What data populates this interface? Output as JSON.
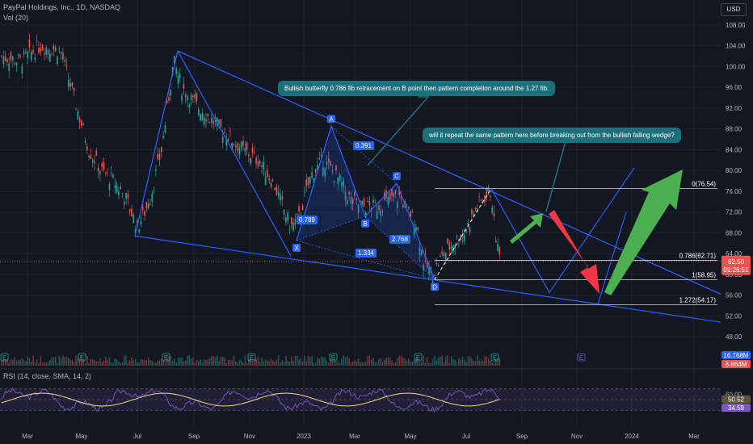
{
  "header": {
    "symbol_line": "PayPal Holdings, Inc., 1D, NASDAQ",
    "vol_label": "Vol (20)",
    "currency": "USD"
  },
  "notes": {
    "note1": "Bullish butterfly 0.786 fib retracement on B point then pattern completion around the 1.27 fib.",
    "note2": "will it repeat the same pattern here before breaking out from the bullish falling wedge?"
  },
  "colors": {
    "background": "#131722",
    "up": "#26a69a",
    "down": "#ef5350",
    "pattern": "#2962ff",
    "callout": "#1d6f7a",
    "green_arrow": "#4caf50",
    "red_arrow": "#f23645",
    "rsi": "#7e57c2",
    "rsi_ma": "#f5d78e"
  },
  "chart_data": {
    "type": "candlestick",
    "price_axis": {
      "min": 46,
      "max": 110,
      "ticks": [
        "108.00",
        "104.00",
        "100.00",
        "96.00",
        "92.00",
        "88.00",
        "84.00",
        "80.00",
        "76.00",
        "72.00",
        "68.00",
        "64.00",
        "60.00",
        "56.00",
        "52.00",
        "48.00"
      ]
    },
    "x_axis": {
      "ticks": [
        "Mar",
        "May",
        "Jul",
        "Sep",
        "Nov",
        "2023",
        "Mar",
        "May",
        "Jul",
        "Sep",
        "Nov",
        "2024",
        "Mar"
      ]
    },
    "last_price": "62.50",
    "countdown": "01:26:51",
    "volume_labels": [
      "16.768M",
      "8.664M"
    ],
    "pattern_points": [
      {
        "label": "X",
        "price": 66.5
      },
      {
        "label": "A",
        "price": 88.5
      },
      {
        "label": "B",
        "price": 71.2
      },
      {
        "label": "C",
        "price": 77.5
      },
      {
        "label": "D",
        "price": 59.0
      }
    ],
    "ratios": [
      "0.391",
      "0.789",
      "1.334",
      "2.768"
    ],
    "fib_levels": [
      {
        "label": "0(76.54)",
        "price": 76.54
      },
      {
        "label": "0.786(62.71)",
        "price": 62.71
      },
      {
        "label": "1(58.95)",
        "price": 58.95
      },
      {
        "label": "1.272(54.17)",
        "price": 54.17
      }
    ],
    "event_markers": [
      "E",
      "E",
      "E",
      "E",
      "E",
      "E",
      "E",
      "E"
    ],
    "rsi": {
      "label": "RSI (14, close, SMA, 14, 2)",
      "axis_ticks": [
        "60.00",
        "40.00"
      ],
      "value_labels": [
        "50.52",
        "34.59"
      ],
      "band_upper": 70,
      "band_lower": 30
    }
  }
}
